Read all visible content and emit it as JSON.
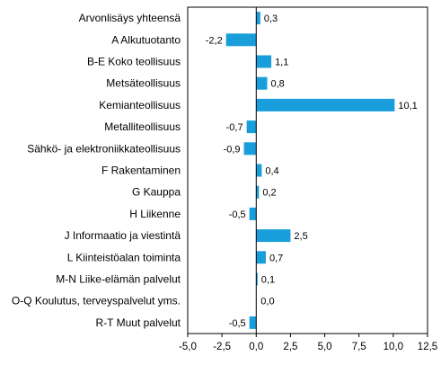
{
  "chart_data": {
    "type": "bar",
    "orientation": "horizontal",
    "title": "",
    "xlabel": "",
    "ylabel": "",
    "xlim": [
      -5.0,
      12.5
    ],
    "xticks": [
      -5.0,
      -2.5,
      0.0,
      2.5,
      5.0,
      7.5,
      10.0,
      12.5
    ],
    "xtick_labels": [
      "-5,0",
      "-2,5",
      "0,0",
      "2,5",
      "5,0",
      "7,5",
      "10,0",
      "12,5"
    ],
    "grid": false,
    "legend": "none",
    "bar_color": "#1a9edb",
    "categories": [
      "Arvonlisäys yhteensä",
      "A Alkutuotanto",
      "B-E Koko teollisuus",
      "Metsäteollisuus",
      "Kemianteollisuus",
      "Metalliteollisuus",
      "Sähkö- ja elektroniikkateollisuus",
      "F Rakentaminen",
      "G Kauppa",
      "H Liikenne",
      "J Informaatio ja viestintä",
      "L Kiinteistöalan toiminta",
      "M-N Liike-elämän palvelut",
      "O-Q Koulutus, terveyspalvelut yms.",
      "R-T Muut palvelut"
    ],
    "values": [
      0.3,
      -2.2,
      1.1,
      0.8,
      10.1,
      -0.7,
      -0.9,
      0.4,
      0.2,
      -0.5,
      2.5,
      0.7,
      0.1,
      0.0,
      -0.5
    ],
    "value_labels": [
      "0,3",
      "-2,2",
      "1,1",
      "0,8",
      "10,1",
      "-0,7",
      "-0,9",
      "0,4",
      "0,2",
      "-0,5",
      "2,5",
      "0,7",
      "0,1",
      "0,0",
      "-0,5"
    ]
  }
}
